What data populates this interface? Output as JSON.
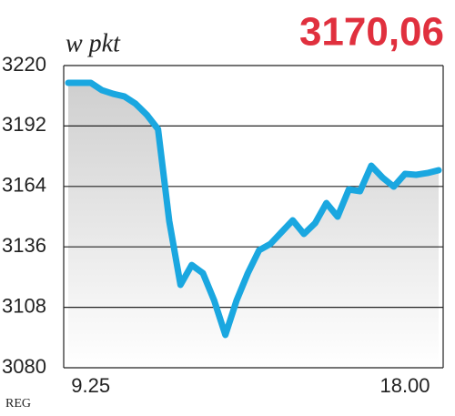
{
  "chart_data": {
    "type": "line",
    "y_label": "w pkt",
    "headline": "3170,06",
    "source": "REG",
    "categories": [
      null,
      null,
      "9.25",
      null,
      null,
      null,
      null,
      null,
      null,
      null,
      null,
      null,
      null,
      null,
      null,
      null,
      null,
      null,
      null,
      null,
      null,
      null,
      null,
      null,
      null,
      null,
      null,
      null,
      null,
      null,
      "18.00",
      null,
      null,
      null
    ],
    "series": [
      {
        "color": "#1aa7e0",
        "values": [
          3212,
          3212,
          3212,
          3208.6,
          3206.9,
          3205.7,
          3202.3,
          3197.2,
          3190.5,
          3147.9,
          3118.4,
          3127.6,
          3123.8,
          3111.2,
          3095.2,
          3111.2,
          3123.8,
          3134.4,
          3137.3,
          3142.8,
          3148.3,
          3142,
          3147,
          3156.3,
          3150,
          3162.6,
          3161.8,
          3173.6,
          3168.1,
          3163.9,
          3169.8,
          3169.4,
          3170.2,
          3171.5
        ]
      }
    ],
    "ylim": [
      3080,
      3220
    ],
    "yticks": [
      3080,
      3108,
      3136,
      3164,
      3192,
      3220
    ],
    "grid": true
  }
}
